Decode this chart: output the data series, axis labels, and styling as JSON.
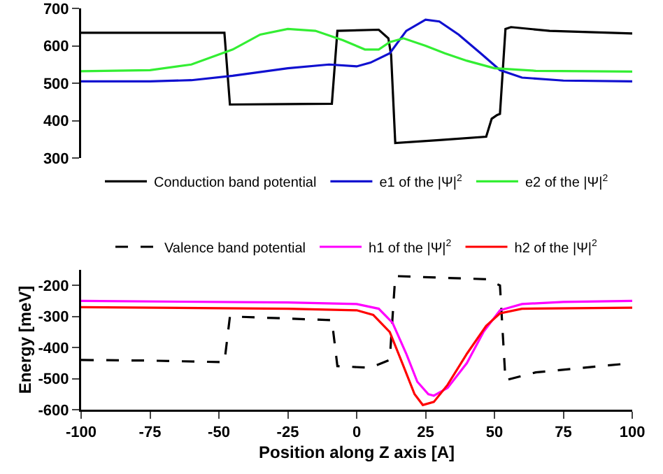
{
  "chart_data": [
    {
      "type": "line",
      "xlim": [
        -100,
        100
      ],
      "xticks": [
        -100,
        -75,
        -50,
        -25,
        0,
        25,
        50,
        75,
        100
      ],
      "ylim": [
        300,
        700
      ],
      "yticks": [
        300,
        400,
        500,
        600,
        700
      ],
      "tick_labels": "y",
      "legend": "bottom",
      "marker": "none",
      "series": [
        {
          "name": "Conduction band potential",
          "color": "#000000",
          "line_style": "solid",
          "x": [
            -100,
            -75,
            -50,
            -48,
            -46,
            -25,
            -9,
            -7,
            8,
            11.5,
            12.5,
            14,
            30,
            47,
            49,
            51,
            52,
            54,
            56,
            70,
            100
          ],
          "values": [
            635,
            635,
            635,
            635,
            443,
            444,
            445,
            640,
            643,
            620,
            575,
            340,
            348,
            357,
            405,
            415,
            418,
            645,
            650,
            640,
            633
          ]
        },
        {
          "name": "e1 of the |Ψ|$^{2}$",
          "color": "#1010d0",
          "line_style": "solid",
          "x": [
            -100,
            -75,
            -60,
            -45,
            -25,
            -10,
            0,
            5,
            12,
            18,
            25,
            30,
            37,
            45,
            52,
            60,
            75,
            100
          ],
          "values": [
            505,
            505,
            508,
            520,
            540,
            550,
            545,
            555,
            580,
            640,
            670,
            665,
            630,
            580,
            535,
            515,
            507,
            505
          ]
        },
        {
          "name": "e2 of the |Ψ|$^{2}$",
          "color": "#33ee33",
          "line_style": "solid",
          "x": [
            -100,
            -75,
            -60,
            -45,
            -35,
            -25,
            -15,
            -5,
            3,
            8,
            12,
            17,
            25,
            32,
            40,
            50,
            65,
            100
          ],
          "values": [
            532,
            535,
            550,
            590,
            630,
            645,
            640,
            615,
            590,
            590,
            610,
            620,
            600,
            580,
            560,
            540,
            533,
            531
          ]
        }
      ]
    },
    {
      "type": "line",
      "xlabel": "Position along Z axis [A]",
      "ylabel": "Energy [meV]",
      "xlim": [
        -100,
        100
      ],
      "xticks": [
        -100,
        -75,
        -50,
        -25,
        0,
        25,
        50,
        75,
        100
      ],
      "ylim": [
        -600,
        -150
      ],
      "yticks": [
        -600,
        -500,
        -400,
        -300,
        -200
      ],
      "legend": "top",
      "marker": "none",
      "series": [
        {
          "name": "Valence band potential",
          "color": "#000000",
          "line_style": "dashed",
          "x": [
            -100,
            -75,
            -48,
            -46,
            -30,
            -9,
            -7,
            5,
            12,
            14,
            30,
            47,
            52,
            54,
            65,
            100
          ],
          "values": [
            -440,
            -442,
            -447,
            -300,
            -305,
            -312,
            -460,
            -465,
            -440,
            -170,
            -175,
            -180,
            -200,
            -505,
            -480,
            -450
          ]
        },
        {
          "name": "h1 of the |Ψ|$^{2}$",
          "color": "#ff00ff",
          "line_style": "solid",
          "x": [
            -100,
            -25,
            0,
            8,
            13,
            18,
            22,
            26,
            28,
            33,
            40,
            46,
            52,
            60,
            75,
            100
          ],
          "values": [
            -250,
            -255,
            -260,
            -275,
            -320,
            -420,
            -510,
            -550,
            -555,
            -530,
            -450,
            -350,
            -280,
            -260,
            -253,
            -250
          ]
        },
        {
          "name": "h2 of the |Ψ|$^{2}$",
          "color": "#ff0000",
          "line_style": "solid",
          "x": [
            -100,
            -25,
            0,
            6,
            12,
            17,
            21,
            24,
            28,
            33,
            40,
            47,
            52,
            60,
            100
          ],
          "values": [
            -270,
            -275,
            -280,
            -295,
            -350,
            -460,
            -550,
            -585,
            -575,
            -520,
            -420,
            -330,
            -290,
            -275,
            -272
          ]
        }
      ]
    }
  ]
}
